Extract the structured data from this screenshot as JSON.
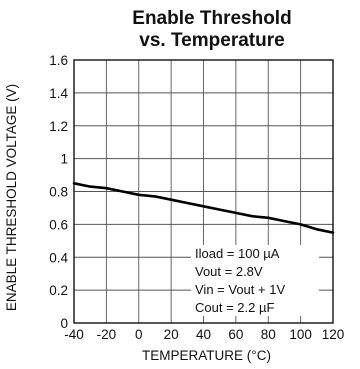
{
  "chart_data": {
    "type": "line",
    "title": [
      "Enable Threshold",
      "vs. Temperature"
    ],
    "xlabel": "TEMPERATURE (°C)",
    "ylabel": "ENABLE THRESHOLD VOLTAGE (V)",
    "xlim": [
      -40,
      120
    ],
    "ylim": [
      0,
      1.6
    ],
    "x_ticks": [
      -40,
      -20,
      0,
      20,
      40,
      60,
      80,
      100,
      120
    ],
    "y_ticks": [
      0,
      0.2,
      0.4,
      0.6,
      0.8,
      1,
      1.2,
      1.4,
      1.6
    ],
    "y_tick_labels": [
      "0",
      "0.2",
      "0.4",
      "0.6",
      "0.8",
      "1",
      "1.2",
      "1.4",
      "1.6"
    ],
    "grid": true,
    "series": [
      {
        "x": [
          -40,
          -30,
          -20,
          -10,
          0,
          10,
          20,
          30,
          40,
          50,
          60,
          70,
          80,
          90,
          100,
          110,
          120
        ],
        "y": [
          0.85,
          0.83,
          0.82,
          0.8,
          0.78,
          0.77,
          0.75,
          0.73,
          0.71,
          0.69,
          0.67,
          0.65,
          0.64,
          0.62,
          0.6,
          0.57,
          0.55
        ],
        "color": "#000000"
      }
    ],
    "annotations": [
      "Iload = 100  µA",
      "Vout = 2.8V",
      "Vin = Vout + 1V",
      "Cout = 2.2 µF"
    ]
  }
}
